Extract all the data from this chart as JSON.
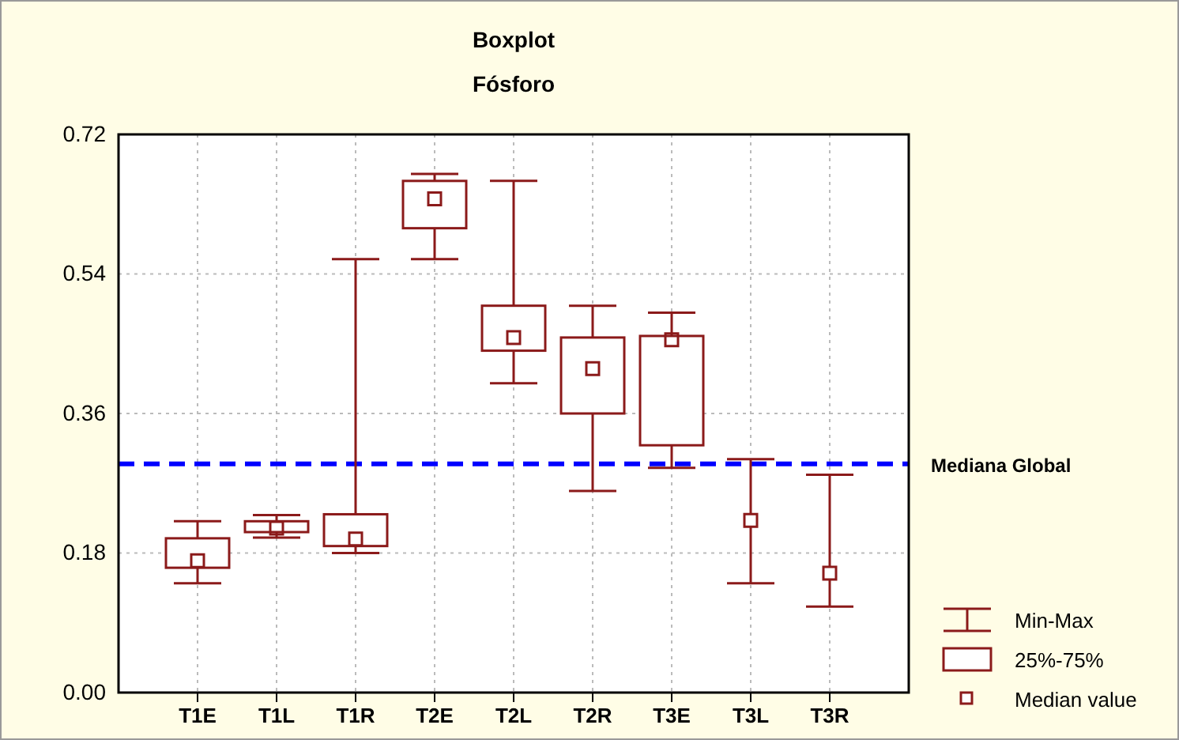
{
  "chart_data": {
    "type": "box",
    "title": "Boxplot",
    "subtitle": "Fósforo",
    "categories": [
      "T1E",
      "T1L",
      "T1R",
      "T2E",
      "T2L",
      "T2R",
      "T3E",
      "T3L",
      "T3R"
    ],
    "series": [
      {
        "color": "#8b1a1a",
        "boxes": [
          {
            "low": 0.141,
            "q1": 0.161,
            "median": 0.17,
            "q3": 0.199,
            "high": 0.221
          },
          {
            "low": 0.2,
            "q1": 0.207,
            "median": 0.212,
            "q3": 0.221,
            "high": 0.229
          },
          {
            "low": 0.18,
            "q1": 0.189,
            "median": 0.198,
            "q3": 0.23,
            "high": 0.559
          },
          {
            "low": 0.559,
            "q1": 0.599,
            "median": 0.637,
            "q3": 0.66,
            "high": 0.669
          },
          {
            "low": 0.399,
            "q1": 0.441,
            "median": 0.458,
            "q3": 0.499,
            "high": 0.66
          },
          {
            "low": 0.26,
            "q1": 0.36,
            "median": 0.418,
            "q3": 0.458,
            "high": 0.499
          },
          {
            "low": 0.29,
            "q1": 0.319,
            "median": 0.455,
            "q3": 0.46,
            "high": 0.49
          },
          null,
          null
        ]
      },
      {
        "type": "scatter",
        "color": "#8b1a1a",
        "x": [
          "T3L",
          "T3R"
        ],
        "values": [
          0.222,
          0.154
        ],
        "errors": [
          [
            0.141,
            0.301
          ],
          [
            0.111,
            0.281
          ]
        ]
      }
    ],
    "ylim": [
      0,
      0.72
    ],
    "yticks": [
      {
        "value": 0,
        "label": "0.00"
      },
      {
        "value": 0.18,
        "label": "0.18"
      },
      {
        "value": 0.36,
        "label": "0.36"
      },
      {
        "value": 0.54,
        "label": "0.54"
      },
      {
        "value": 0.72,
        "label": "0.72"
      }
    ],
    "grid": true,
    "legend": "bottom right",
    "marker": "square",
    "annotations": [
      "Min-Max",
      "25%-75%",
      "Median value"
    ],
    "ref_lines": [
      {
        "axis": "y",
        "value": 0.295,
        "label": "Mediana Global",
        "color": "#0000ff",
        "line_style": "dashed"
      }
    ]
  }
}
